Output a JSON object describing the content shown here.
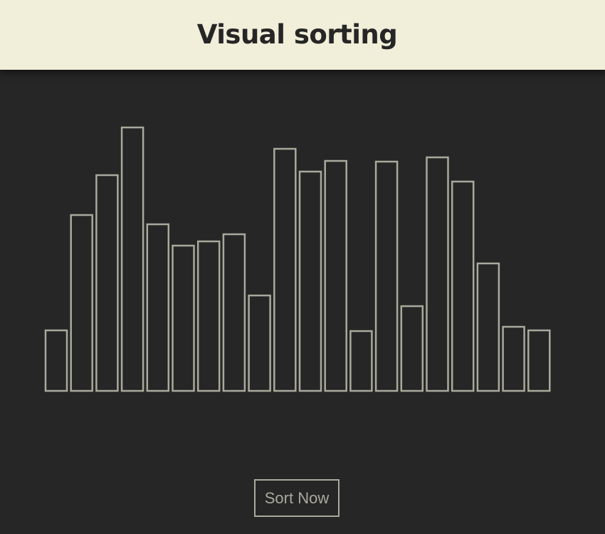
{
  "header": {
    "title": "Visual sorting"
  },
  "controls": {
    "sort_label": "Sort Now"
  },
  "colors": {
    "header_bg": "#f1eed9",
    "page_bg": "#262626",
    "bar_stroke": "#a9a99c",
    "title_text": "#262626"
  },
  "chart_data": {
    "type": "bar",
    "values": [
      85,
      247,
      303,
      370,
      234,
      204,
      210,
      220,
      134,
      340,
      308,
      323,
      84,
      322,
      119,
      328,
      294,
      179,
      90,
      85
    ]
  }
}
